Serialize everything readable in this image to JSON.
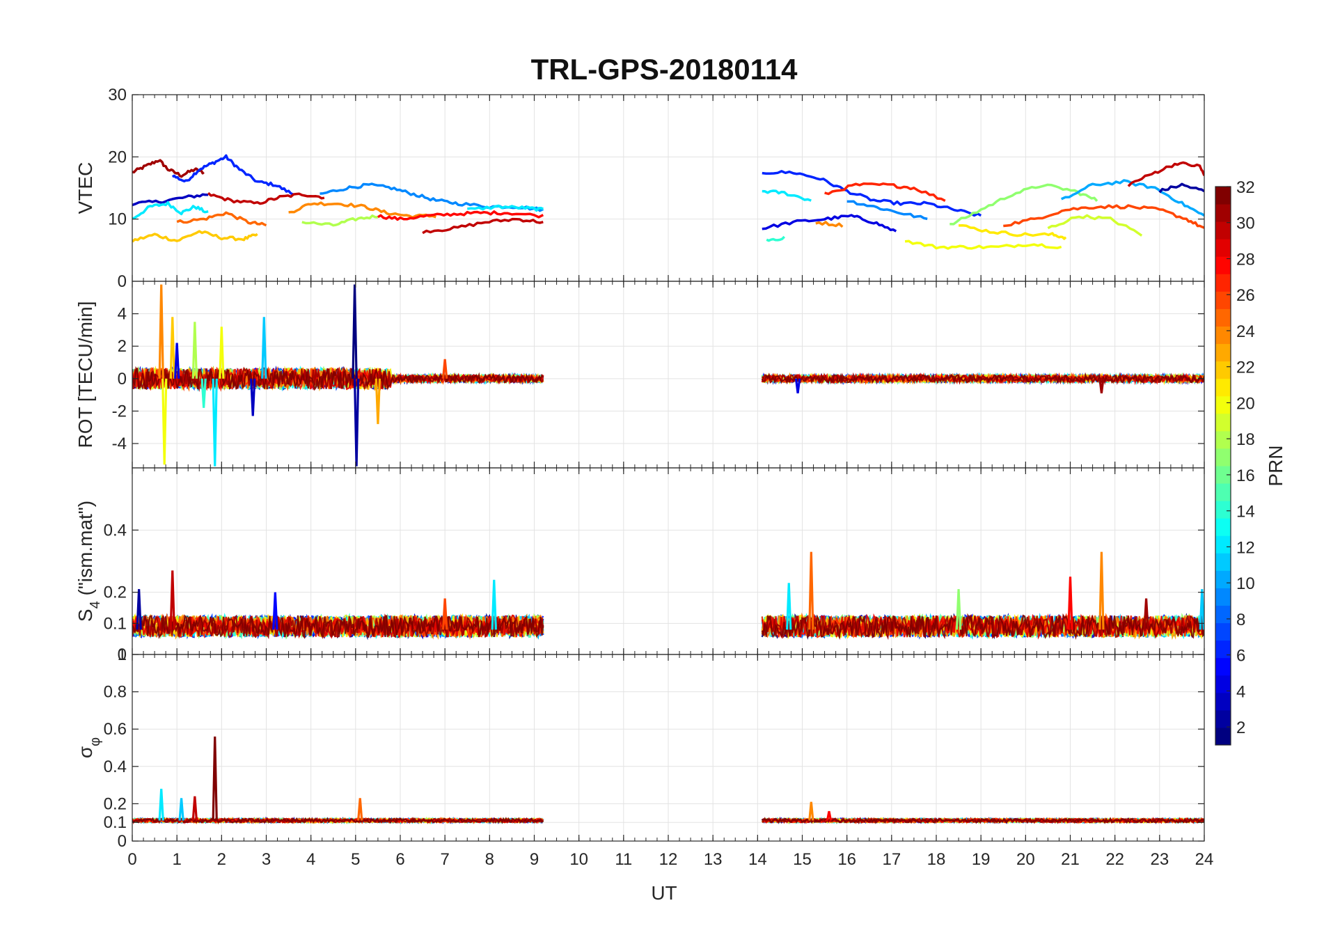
{
  "chart_data": {
    "type": "line",
    "title": "TRL-GPS-20180114",
    "xlabel": "UT",
    "xlim": [
      0,
      24
    ],
    "x_ticks": [
      0,
      1,
      2,
      3,
      4,
      5,
      6,
      7,
      8,
      9,
      10,
      11,
      12,
      13,
      14,
      15,
      16,
      17,
      18,
      19,
      20,
      21,
      22,
      23,
      24
    ],
    "colorbar": {
      "label": "PRN",
      "range": [
        1,
        32
      ],
      "ticks": [
        2,
        4,
        6,
        8,
        10,
        12,
        14,
        16,
        18,
        20,
        22,
        24,
        26,
        28,
        30,
        32
      ],
      "colormap": "jet"
    },
    "panels": [
      {
        "ylabel": "VTEC",
        "ylim": [
          0,
          30
        ],
        "y_ticks": [
          10,
          20,
          30
        ],
        "series": [
          {
            "prn": 31,
            "x": [
              0,
              0.3,
              0.6,
              0.8,
              1.1,
              1.4,
              1.6
            ],
            "y": [
              17.5,
              18.5,
              19.5,
              18,
              17,
              18,
              17.5
            ]
          },
          {
            "prn": 6,
            "x": [
              0.9,
              1.2,
              1.5,
              1.8,
              2.1,
              2.4,
              2.8,
              3.2,
              3.6
            ],
            "y": [
              17,
              16,
              18,
              19,
              20,
              18,
              16,
              15.5,
              14
            ]
          },
          {
            "prn": 3,
            "x": [
              0,
              0.6,
              1.2,
              1.7
            ],
            "y": [
              12.5,
              12.8,
              13.5,
              14
            ]
          },
          {
            "prn": 12,
            "x": [
              0,
              0.4,
              0.8,
              1.1,
              1.4,
              1.7
            ],
            "y": [
              10,
              12,
              12.5,
              11,
              12,
              11
            ]
          },
          {
            "prn": 22,
            "x": [
              0,
              0.5,
              1,
              1.5,
              2,
              2.5,
              2.8
            ],
            "y": [
              6.5,
              7.5,
              6.5,
              8,
              7,
              6.8,
              7.5
            ]
          },
          {
            "prn": 30,
            "x": [
              1.7,
              2.2,
              2.8,
              3.3,
              3.8,
              4.3
            ],
            "y": [
              14,
              13,
              12.5,
              13.5,
              14,
              13.5
            ]
          },
          {
            "prn": 25,
            "x": [
              1,
              1.6,
              2.1,
              2.6,
              3
            ],
            "y": [
              9.5,
              10,
              11,
              9.5,
              9
            ]
          },
          {
            "prn": 9,
            "x": [
              4.2,
              4.8,
              5.3,
              5.8,
              6.3,
              6.8,
              7.3,
              8,
              8.6,
              9.2
            ],
            "y": [
              14,
              15,
              15.5,
              15,
              14,
              13,
              12.5,
              12,
              12,
              11.5
            ]
          },
          {
            "prn": 24,
            "x": [
              3.5,
              4,
              4.6,
              5.2,
              5.7,
              6.2,
              6.8
            ],
            "y": [
              11,
              12.5,
              12.5,
              12,
              11,
              10.5,
              10.5
            ]
          },
          {
            "prn": 18,
            "x": [
              3.8,
              4.5,
              5,
              5.5
            ],
            "y": [
              9.5,
              9,
              10,
              10.5
            ]
          },
          {
            "prn": 28,
            "x": [
              5.5,
              6,
              6.6,
              7.2,
              7.8,
              8.4,
              9.2
            ],
            "y": [
              10.5,
              10,
              10.5,
              10.8,
              11,
              11,
              10.5
            ]
          },
          {
            "prn": 30,
            "x": [
              6.5,
              7.2,
              7.9,
              8.6,
              9.2
            ],
            "y": [
              8,
              8.5,
              9.5,
              10,
              9.5
            ]
          },
          {
            "prn": 12,
            "x": [
              7.5,
              8.2,
              8.8,
              9.2
            ],
            "y": [
              11.5,
              12,
              11.8,
              11.5
            ]
          },
          {
            "prn": 6,
            "x": [
              14.1,
              14.8,
              15.4,
              16,
              16.6,
              17.2,
              17.8,
              18.4,
              19
            ],
            "y": [
              17.5,
              17.5,
              16.5,
              14.5,
              13,
              12.5,
              12.5,
              11.5,
              10.5
            ]
          },
          {
            "prn": 12,
            "x": [
              14.1,
              14.6,
              15.2
            ],
            "y": [
              14.5,
              14.2,
              13
            ]
          },
          {
            "prn": 4,
            "x": [
              14.1,
              14.8,
              15.5,
              16.1,
              16.6,
              17.1
            ],
            "y": [
              8.5,
              9.5,
              10,
              10.5,
              9.5,
              8
            ]
          },
          {
            "prn": 27,
            "x": [
              15.5,
              16.2,
              16.9,
              17.5,
              18.2
            ],
            "y": [
              14,
              15.5,
              15.5,
              15,
              13
            ]
          },
          {
            "prn": 9,
            "x": [
              16,
              16.6,
              17.2,
              17.8
            ],
            "y": [
              13,
              12,
              11,
              10
            ]
          },
          {
            "prn": 24,
            "x": [
              15.3,
              15.9
            ],
            "y": [
              9.5,
              9
            ]
          },
          {
            "prn": 20,
            "x": [
              17.3,
              18,
              18.7,
              19.4,
              20.1,
              20.8
            ],
            "y": [
              6.5,
              5.5,
              5.5,
              5.5,
              6,
              5.5
            ]
          },
          {
            "prn": 21,
            "x": [
              18.5,
              19.2,
              19.9,
              20.6,
              20.9
            ],
            "y": [
              9,
              8,
              7.5,
              7.5,
              7
            ]
          },
          {
            "prn": 17,
            "x": [
              18.3,
              19,
              19.7,
              20.4,
              21.1,
              21.6
            ],
            "y": [
              9,
              11.5,
              14,
              15.5,
              14.5,
              13
            ]
          },
          {
            "prn": 26,
            "x": [
              19.5,
              20.2,
              20.9,
              21.6,
              22.3,
              23,
              23.6,
              24
            ],
            "y": [
              9,
              10,
              11.5,
              12,
              12,
              11.5,
              10,
              8.5
            ]
          },
          {
            "prn": 10,
            "x": [
              20.8,
              21.5,
              22.2,
              22.9,
              23.5,
              24
            ],
            "y": [
              13,
              15.5,
              16,
              15,
              12.5,
              10.5
            ]
          },
          {
            "prn": 30,
            "x": [
              22.3,
              22.9,
              23.4,
              23.9,
              24
            ],
            "y": [
              15.5,
              17.5,
              19,
              18.5,
              17
            ]
          },
          {
            "prn": 2,
            "x": [
              23,
              23.5,
              24
            ],
            "y": [
              14.5,
              15.5,
              14.5
            ]
          },
          {
            "prn": 19,
            "x": [
              20.5,
              21.2,
              21.9,
              22.6
            ],
            "y": [
              8.5,
              10.5,
              10,
              7.5
            ]
          },
          {
            "prn": 14,
            "x": [
              14.2,
              14.6
            ],
            "y": [
              6.5,
              7
            ]
          }
        ]
      },
      {
        "ylabel": "ROT [TECU/min]",
        "ylim": [
          -5.5,
          6
        ],
        "y_ticks": [
          -4,
          -2,
          0,
          2,
          4
        ],
        "y_tick_labels": [
          "-4",
          "-2",
          "0",
          "2",
          "4"
        ],
        "top_tick_label": "0",
        "coverage": [
          [
            0,
            9.2
          ],
          [
            14.1,
            24
          ]
        ],
        "spikes": [
          {
            "prn": 24,
            "x": 0.65,
            "y": 5.8
          },
          {
            "prn": 20,
            "x": 0.72,
            "y": -5.3
          },
          {
            "prn": 22,
            "x": 0.9,
            "y": 3.8
          },
          {
            "prn": 4,
            "x": 1.0,
            "y": 2.2
          },
          {
            "prn": 18,
            "x": 1.4,
            "y": 3.5
          },
          {
            "prn": 14,
            "x": 1.6,
            "y": -1.8
          },
          {
            "prn": 12,
            "x": 1.85,
            "y": -5.4
          },
          {
            "prn": 20,
            "x": 2.0,
            "y": 3.2
          },
          {
            "prn": 11,
            "x": 2.95,
            "y": 3.8
          },
          {
            "prn": 3,
            "x": 2.7,
            "y": -2.3
          },
          {
            "prn": 1,
            "x": 4.98,
            "y": 5.8
          },
          {
            "prn": 2,
            "x": 5.02,
            "y": -5.4
          },
          {
            "prn": 23,
            "x": 5.5,
            "y": -2.8
          },
          {
            "prn": 26,
            "x": 7.0,
            "y": 1.2
          },
          {
            "prn": 4,
            "x": 14.9,
            "y": -0.9
          },
          {
            "prn": 31,
            "x": 21.7,
            "y": -0.9
          }
        ]
      },
      {
        "ylabel": "S4 (\"ism.mat\")",
        "ylabel_main": "S",
        "ylabel_sub": "4",
        "ylabel_rest": " (\"ism.mat\")",
        "ylim": [
          0,
          0.6
        ],
        "y_ticks": [
          0,
          0.1,
          0.2,
          0.4
        ],
        "y_tick_labels": [
          "0",
          "0.1",
          "0.2",
          "0.4"
        ],
        "coverage": [
          [
            0,
            9.2
          ],
          [
            14.1,
            24
          ]
        ],
        "baseline": 0.08,
        "spikes": [
          {
            "prn": 30,
            "x": 0.9,
            "y": 0.27
          },
          {
            "prn": 2,
            "x": 0.15,
            "y": 0.21
          },
          {
            "prn": 5,
            "x": 3.2,
            "y": 0.2
          },
          {
            "prn": 12,
            "x": 8.1,
            "y": 0.24
          },
          {
            "prn": 26,
            "x": 7.0,
            "y": 0.18
          },
          {
            "prn": 12,
            "x": 14.7,
            "y": 0.23
          },
          {
            "prn": 25,
            "x": 15.2,
            "y": 0.33
          },
          {
            "prn": 17,
            "x": 18.5,
            "y": 0.21
          },
          {
            "prn": 28,
            "x": 21.0,
            "y": 0.25
          },
          {
            "prn": 24,
            "x": 21.7,
            "y": 0.33
          },
          {
            "prn": 31,
            "x": 22.7,
            "y": 0.18
          },
          {
            "prn": 11,
            "x": 23.95,
            "y": 0.21
          }
        ]
      },
      {
        "ylabel": "σφ",
        "ylabel_main": "σ",
        "ylabel_sub": "φ",
        "ylim": [
          0,
          1
        ],
        "y_ticks": [
          0,
          0.1,
          0.2,
          0.4,
          0.6,
          0.8
        ],
        "y_tick_labels": [
          "0",
          "0.1",
          "0.2",
          "0.4",
          "0.6",
          "0.8"
        ],
        "top_tick_label": "1",
        "coverage": [
          [
            0,
            9.2
          ],
          [
            14.1,
            24
          ]
        ],
        "baseline": 0.11,
        "spikes": [
          {
            "prn": 12,
            "x": 0.65,
            "y": 0.28
          },
          {
            "prn": 11,
            "x": 1.1,
            "y": 0.23
          },
          {
            "prn": 30,
            "x": 1.4,
            "y": 0.24
          },
          {
            "prn": 32,
            "x": 1.85,
            "y": 0.56
          },
          {
            "prn": 25,
            "x": 5.1,
            "y": 0.23
          },
          {
            "prn": 24,
            "x": 15.2,
            "y": 0.21
          },
          {
            "prn": 28,
            "x": 15.6,
            "y": 0.16
          }
        ]
      }
    ]
  }
}
